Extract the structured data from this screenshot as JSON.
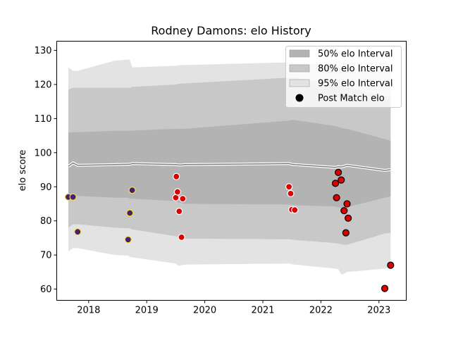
{
  "chart_data": {
    "type": "scatter",
    "title": "Rodney Damons: elo History",
    "xlabel": "",
    "ylabel": "elo score",
    "xlim": [
      2017.45,
      2023.47
    ],
    "ylim": [
      56.7,
      132.7
    ],
    "xticks": [
      2018,
      2019,
      2020,
      2021,
      2022,
      2023
    ],
    "xtick_labels": [
      "2018",
      "2019",
      "2020",
      "2021",
      "2022",
      "2023"
    ],
    "yticks": [
      60,
      70,
      80,
      90,
      100,
      110,
      120,
      130
    ],
    "ytick_labels": [
      "60",
      "70",
      "80",
      "90",
      "100",
      "110",
      "120",
      "130"
    ],
    "grid": false,
    "legend_position": "top-right",
    "legend": [
      {
        "label": "50% elo Interval",
        "kind": "band",
        "color": "#b3b3b3"
      },
      {
        "label": "80% elo Interval",
        "kind": "band",
        "color": "#c8c8c8"
      },
      {
        "label": "95% elo Interval",
        "kind": "band",
        "color": "#e3e3e3"
      },
      {
        "label": "Post Match elo",
        "kind": "marker",
        "color": "#000000"
      }
    ],
    "band_x": [
      2017.65,
      2017.73,
      2017.81,
      2018.45,
      2018.68,
      2018.71,
      2018.75,
      2019.5,
      2019.55,
      2019.6,
      2019.65,
      2021.45,
      2021.5,
      2021.55,
      2022.25,
      2022.3,
      2022.35,
      2022.4,
      2022.45,
      2023.1,
      2023.2
    ],
    "median": [
      96.0,
      97.0,
      96.3,
      96.5,
      96.6,
      96.6,
      96.8,
      96.5,
      96.4,
      96.4,
      96.5,
      96.8,
      96.6,
      96.5,
      95.7,
      95.9,
      95.8,
      96.0,
      96.3,
      94.8,
      95.0
    ],
    "band50": {
      "low": [
        86.8,
        87.3,
        87.3,
        86.8,
        86.8,
        86.5,
        86.5,
        85.8,
        85.4,
        85.2,
        85.0,
        84.8,
        84.7,
        84.6,
        84.2,
        84.0,
        83.8,
        83.8,
        84.0,
        86.8,
        87.2
      ],
      "high": [
        105.8,
        106.0,
        106.0,
        106.4,
        106.4,
        106.5,
        106.5,
        107.0,
        107.0,
        107.0,
        107.0,
        109.4,
        109.6,
        109.6,
        107.8,
        107.5,
        107.3,
        107.0,
        107.0,
        104.0,
        103.5
      ]
    },
    "band80": {
      "low": [
        78.0,
        79.0,
        79.0,
        78.0,
        77.8,
        77.8,
        77.5,
        75.5,
        75.2,
        75.0,
        74.8,
        74.6,
        74.5,
        74.4,
        73.5,
        73.3,
        73.2,
        73.0,
        73.0,
        76.3,
        76.5
      ],
      "high": [
        118.5,
        119.0,
        119.0,
        119.0,
        119.0,
        119.0,
        119.3,
        120.0,
        120.2,
        120.3,
        120.3,
        122.0,
        122.0,
        122.0,
        120.0,
        119.7,
        119.5,
        119.3,
        119.2,
        116.5,
        116.5
      ]
    },
    "band95": {
      "low": [
        71.0,
        72.0,
        72.0,
        70.0,
        69.8,
        69.5,
        69.3,
        67.5,
        66.8,
        67.0,
        67.2,
        67.5,
        67.3,
        67.2,
        66.0,
        65.8,
        64.3,
        64.5,
        65.0,
        66.0,
        66.5
      ],
      "high": [
        125.0,
        124.0,
        124.0,
        127.0,
        127.3,
        127.3,
        125.0,
        125.5,
        125.6,
        125.7,
        125.7,
        126.5,
        126.5,
        126.5,
        125.5,
        125.3,
        125.0,
        125.0,
        125.0,
        124.5,
        124.5
      ]
    },
    "series": [
      {
        "marker_fill": "#4a1f6e",
        "marker_edge": "#f2e23a",
        "x": [
          2017.65,
          2017.73,
          2017.81,
          2018.68,
          2018.71,
          2018.75
        ],
        "y": [
          87.0,
          87.0,
          76.8,
          74.5,
          82.3,
          89.0
        ]
      },
      {
        "marker_fill": "#dd0000",
        "marker_edge": "#ffffff",
        "x": [
          2019.5,
          2019.51,
          2019.53,
          2019.56,
          2019.6,
          2019.62,
          2021.45,
          2021.48,
          2021.5,
          2021.55
        ],
        "y": [
          86.8,
          93.0,
          88.5,
          82.8,
          75.2,
          86.5,
          90.0,
          88.0,
          83.3,
          83.2
        ]
      },
      {
        "marker_fill": "#dd0000",
        "marker_edge": "#000000",
        "x": [
          2022.25,
          2022.27,
          2022.3,
          2022.35,
          2022.4,
          2022.43,
          2022.45,
          2022.47,
          2023.1,
          2023.2
        ],
        "y": [
          91.0,
          86.8,
          94.2,
          92.0,
          83.0,
          76.5,
          85.0,
          80.8,
          60.2,
          67.0
        ]
      }
    ]
  }
}
